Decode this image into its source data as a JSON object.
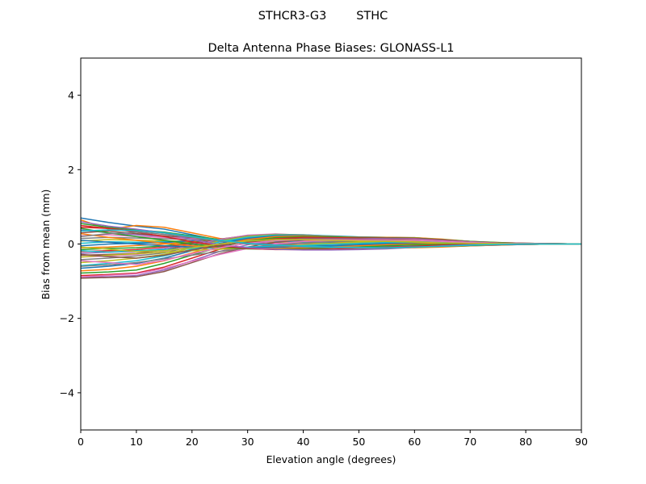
{
  "figure": {
    "suptitle": "STHCR3-G3        STHC"
  },
  "chart_data": {
    "type": "line",
    "title": "Delta Antenna Phase Biases: GLONASS-L1",
    "xlabel": "Elevation angle (degrees)",
    "ylabel": "Bias from mean (mm)",
    "xlim": [
      0,
      90
    ],
    "ylim": [
      -5,
      5
    ],
    "x_ticks": [
      0,
      10,
      20,
      30,
      40,
      50,
      60,
      70,
      80,
      90
    ],
    "y_ticks": [
      -4,
      -2,
      0,
      2,
      4
    ],
    "x_tick_labels": [
      "0",
      "10",
      "20",
      "30",
      "40",
      "50",
      "60",
      "70",
      "80",
      "90"
    ],
    "y_tick_labels": [
      "−4",
      "−2",
      "0",
      "2",
      "4"
    ],
    "grid": false,
    "legend": "none",
    "x": [
      0,
      5,
      10,
      15,
      20,
      25,
      30,
      35,
      40,
      45,
      50,
      55,
      60,
      65,
      70,
      75,
      80,
      85,
      90
    ],
    "palette": [
      "#1f77b4",
      "#ff7f0e",
      "#2ca02c",
      "#d62728",
      "#9467bd",
      "#8c564b",
      "#e377c2",
      "#7f7f7f",
      "#bcbd22",
      "#17becf"
    ],
    "series": [
      {
        "values": [
          0.7,
          0.58,
          0.48,
          0.4,
          0.25,
          0.1,
          0.02,
          -0.04,
          -0.07,
          -0.09,
          -0.1,
          -0.1,
          -0.09,
          -0.07,
          -0.05,
          -0.03,
          -0.01,
          0.0,
          0.0
        ]
      },
      {
        "values": [
          0.65,
          0.4,
          0.5,
          0.45,
          0.3,
          0.15,
          0.05,
          -0.02,
          -0.06,
          -0.08,
          -0.1,
          -0.11,
          -0.1,
          -0.08,
          -0.05,
          -0.03,
          -0.01,
          0.0,
          0.0
        ]
      },
      {
        "values": [
          0.55,
          0.45,
          0.38,
          0.32,
          0.22,
          0.12,
          0.04,
          -0.02,
          -0.05,
          -0.07,
          -0.08,
          -0.09,
          -0.08,
          -0.06,
          -0.04,
          -0.02,
          -0.01,
          0.0,
          0.0
        ]
      },
      {
        "values": [
          0.45,
          0.42,
          0.35,
          0.3,
          0.2,
          0.1,
          0.03,
          -0.02,
          -0.05,
          -0.06,
          -0.07,
          -0.08,
          -0.07,
          -0.05,
          -0.03,
          -0.02,
          -0.01,
          0.0,
          0.0
        ]
      },
      {
        "values": [
          0.38,
          0.3,
          0.25,
          0.2,
          0.15,
          0.08,
          0.03,
          -0.01,
          -0.03,
          -0.05,
          -0.06,
          -0.06,
          -0.05,
          -0.04,
          -0.03,
          -0.02,
          -0.01,
          0.0,
          0.0
        ]
      },
      {
        "values": [
          0.3,
          0.35,
          0.28,
          0.22,
          0.16,
          0.1,
          0.05,
          0.01,
          -0.02,
          -0.04,
          -0.05,
          -0.05,
          -0.04,
          -0.03,
          -0.02,
          -0.01,
          0.0,
          0.0,
          0.0
        ]
      },
      {
        "values": [
          0.22,
          0.25,
          0.2,
          0.18,
          0.14,
          0.1,
          0.06,
          0.03,
          0.0,
          -0.02,
          -0.03,
          -0.04,
          -0.04,
          -0.03,
          -0.02,
          -0.01,
          0.0,
          0.0,
          0.0
        ]
      },
      {
        "values": [
          0.15,
          0.18,
          0.16,
          0.14,
          0.12,
          0.1,
          0.08,
          0.05,
          0.02,
          0.0,
          -0.02,
          -0.03,
          -0.03,
          -0.03,
          -0.02,
          -0.01,
          0.0,
          0.0,
          0.0
        ]
      },
      {
        "values": [
          0.08,
          0.12,
          0.1,
          0.08,
          0.08,
          0.08,
          0.08,
          0.06,
          0.04,
          0.02,
          0.0,
          -0.02,
          -0.02,
          -0.02,
          -0.02,
          -0.01,
          0.0,
          0.0,
          0.0
        ]
      },
      {
        "values": [
          0.02,
          0.06,
          0.05,
          0.06,
          0.08,
          0.1,
          0.1,
          0.08,
          0.06,
          0.03,
          0.01,
          -0.01,
          -0.02,
          -0.02,
          -0.01,
          -0.01,
          0.0,
          0.0,
          0.0
        ]
      },
      {
        "values": [
          -0.05,
          0.0,
          0.02,
          0.04,
          0.08,
          0.12,
          0.13,
          0.11,
          0.08,
          0.05,
          0.02,
          0.0,
          -0.01,
          -0.02,
          -0.01,
          -0.01,
          0.0,
          0.0,
          0.0
        ]
      },
      {
        "values": [
          -0.1,
          -0.08,
          -0.04,
          0.0,
          0.06,
          0.12,
          0.15,
          0.14,
          0.11,
          0.07,
          0.04,
          0.01,
          -0.01,
          -0.01,
          -0.01,
          0.0,
          0.0,
          0.0,
          0.0
        ]
      },
      {
        "values": [
          -0.15,
          -0.12,
          -0.1,
          -0.05,
          0.04,
          0.12,
          0.17,
          0.17,
          0.14,
          0.1,
          0.06,
          0.03,
          0.01,
          0.0,
          0.0,
          0.0,
          0.0,
          0.0,
          0.0
        ]
      },
      {
        "values": [
          -0.2,
          -0.18,
          -0.15,
          -0.08,
          0.02,
          0.12,
          0.19,
          0.2,
          0.17,
          0.12,
          0.08,
          0.05,
          0.02,
          0.01,
          0.0,
          0.0,
          0.0,
          0.0,
          0.0
        ]
      },
      {
        "values": [
          -0.25,
          -0.22,
          -0.2,
          -0.12,
          0.0,
          0.13,
          0.21,
          0.22,
          0.19,
          0.15,
          0.11,
          0.08,
          0.05,
          0.02,
          0.01,
          0.0,
          0.0,
          0.0,
          0.0
        ]
      },
      {
        "values": [
          -0.3,
          -0.28,
          -0.25,
          -0.16,
          -0.02,
          0.13,
          0.23,
          0.25,
          0.22,
          0.17,
          0.13,
          0.1,
          0.07,
          0.04,
          0.02,
          0.01,
          0.0,
          0.0,
          0.0
        ]
      },
      {
        "values": [
          -0.35,
          -0.32,
          -0.28,
          -0.2,
          -0.04,
          0.12,
          0.24,
          0.27,
          0.24,
          0.19,
          0.15,
          0.13,
          0.1,
          0.06,
          0.03,
          0.01,
          0.0,
          0.0,
          0.0
        ]
      },
      {
        "values": [
          -0.42,
          -0.38,
          -0.32,
          -0.24,
          -0.06,
          0.1,
          0.22,
          0.26,
          0.25,
          0.21,
          0.17,
          0.15,
          0.12,
          0.07,
          0.04,
          0.02,
          0.01,
          0.0,
          0.0
        ]
      },
      {
        "values": [
          -0.5,
          -0.45,
          -0.38,
          -0.28,
          -0.1,
          0.08,
          0.2,
          0.25,
          0.24,
          0.21,
          0.18,
          0.17,
          0.15,
          0.1,
          0.05,
          0.02,
          0.01,
          0.0,
          0.0
        ]
      },
      {
        "values": [
          -0.58,
          -0.52,
          -0.45,
          -0.32,
          -0.14,
          0.06,
          0.18,
          0.24,
          0.24,
          0.22,
          0.19,
          0.18,
          0.16,
          0.11,
          0.06,
          0.03,
          0.01,
          0.0,
          0.0
        ]
      },
      {
        "values": [
          -0.65,
          -0.6,
          -0.52,
          -0.38,
          -0.18,
          0.02,
          0.15,
          0.22,
          0.23,
          0.21,
          0.19,
          0.18,
          0.17,
          0.12,
          0.07,
          0.03,
          0.02,
          0.01,
          0.0
        ]
      },
      {
        "values": [
          -0.72,
          -0.68,
          -0.6,
          -0.45,
          -0.24,
          -0.02,
          0.12,
          0.2,
          0.22,
          0.2,
          0.18,
          0.18,
          0.17,
          0.13,
          0.07,
          0.04,
          0.02,
          0.01,
          0.0
        ]
      },
      {
        "values": [
          -0.78,
          -0.75,
          -0.7,
          -0.52,
          -0.3,
          -0.08,
          0.08,
          0.17,
          0.2,
          0.19,
          0.17,
          0.17,
          0.16,
          0.12,
          0.07,
          0.04,
          0.02,
          0.01,
          0.0
        ]
      },
      {
        "values": [
          -0.85,
          -0.82,
          -0.78,
          -0.62,
          -0.38,
          -0.14,
          0.04,
          0.14,
          0.18,
          0.17,
          0.16,
          0.16,
          0.15,
          0.11,
          0.06,
          0.03,
          0.02,
          0.01,
          0.0
        ]
      },
      {
        "values": [
          -0.9,
          -0.88,
          -0.85,
          -0.7,
          -0.45,
          -0.2,
          -0.02,
          0.1,
          0.15,
          0.15,
          0.14,
          0.15,
          0.14,
          0.1,
          0.06,
          0.03,
          0.02,
          0.01,
          0.0
        ]
      },
      {
        "values": [
          -0.92,
          -0.9,
          -0.88,
          -0.74,
          -0.5,
          -0.26,
          -0.08,
          0.05,
          0.11,
          0.12,
          0.12,
          0.13,
          0.12,
          0.09,
          0.05,
          0.03,
          0.01,
          0.01,
          0.0
        ]
      },
      {
        "values": [
          -0.88,
          -0.84,
          -0.8,
          -0.66,
          -0.46,
          -0.28,
          -0.12,
          0.0,
          0.07,
          0.09,
          0.1,
          0.11,
          0.11,
          0.08,
          0.05,
          0.02,
          0.01,
          0.0,
          0.0
        ]
      },
      {
        "values": [
          -0.6,
          -0.56,
          -0.5,
          -0.4,
          -0.3,
          -0.2,
          -0.1,
          -0.03,
          0.03,
          0.06,
          0.08,
          0.09,
          0.09,
          0.07,
          0.04,
          0.02,
          0.01,
          0.0,
          0.0
        ]
      },
      {
        "values": [
          -0.35,
          -0.3,
          -0.26,
          -0.22,
          -0.18,
          -0.14,
          -0.1,
          -0.06,
          -0.02,
          0.02,
          0.05,
          0.07,
          0.07,
          0.06,
          0.03,
          0.02,
          0.01,
          0.0,
          0.0
        ]
      },
      {
        "values": [
          -0.18,
          -0.22,
          -0.18,
          -0.15,
          -0.12,
          -0.1,
          -0.08,
          -0.06,
          -0.04,
          -0.01,
          0.02,
          0.04,
          0.05,
          0.04,
          0.03,
          0.01,
          0.0,
          0.0,
          0.0
        ]
      },
      {
        "values": [
          0.1,
          0.05,
          0.0,
          -0.05,
          -0.08,
          -0.1,
          -0.1,
          -0.09,
          -0.07,
          -0.05,
          -0.02,
          0.01,
          0.02,
          0.02,
          0.02,
          0.01,
          0.0,
          0.0,
          0.0
        ]
      },
      {
        "values": [
          0.28,
          0.18,
          0.1,
          0.02,
          -0.05,
          -0.1,
          -0.12,
          -0.12,
          -0.1,
          -0.08,
          -0.05,
          -0.02,
          0.0,
          0.01,
          0.01,
          0.01,
          0.0,
          0.0,
          0.0
        ]
      },
      {
        "values": [
          0.42,
          0.3,
          0.2,
          0.1,
          0.0,
          -0.08,
          -0.13,
          -0.14,
          -0.13,
          -0.11,
          -0.08,
          -0.05,
          -0.02,
          -0.01,
          0.0,
          0.0,
          0.0,
          0.0,
          0.0
        ]
      },
      {
        "values": [
          0.5,
          0.42,
          0.32,
          0.2,
          0.06,
          -0.05,
          -0.12,
          -0.15,
          -0.15,
          -0.14,
          -0.12,
          -0.09,
          -0.06,
          -0.03,
          -0.01,
          0.0,
          0.0,
          0.0,
          0.0
        ]
      },
      {
        "values": [
          0.6,
          0.48,
          0.4,
          0.3,
          0.12,
          -0.02,
          -0.1,
          -0.14,
          -0.16,
          -0.16,
          -0.15,
          -0.13,
          -0.09,
          -0.05,
          -0.02,
          -0.01,
          0.0,
          0.0,
          0.0
        ]
      },
      {
        "values": [
          -0.28,
          -0.34,
          -0.38,
          -0.3,
          -0.16,
          -0.04,
          0.06,
          0.12,
          0.14,
          0.14,
          0.13,
          0.12,
          0.1,
          0.07,
          0.04,
          0.02,
          0.01,
          0.0,
          0.0
        ]
      },
      {
        "values": [
          -0.45,
          -0.5,
          -0.55,
          -0.44,
          -0.26,
          -0.1,
          0.02,
          0.09,
          0.12,
          0.12,
          0.11,
          0.11,
          0.1,
          0.07,
          0.04,
          0.02,
          0.01,
          0.0,
          0.0
        ]
      },
      {
        "values": [
          0.2,
          0.28,
          0.32,
          0.26,
          0.18,
          0.08,
          0.0,
          -0.05,
          -0.08,
          -0.1,
          -0.11,
          -0.11,
          -0.09,
          -0.06,
          -0.03,
          -0.02,
          -0.01,
          0.0,
          0.0
        ]
      },
      {
        "values": [
          -0.08,
          -0.14,
          -0.2,
          -0.18,
          -0.1,
          0.0,
          0.08,
          0.12,
          0.12,
          0.1,
          0.08,
          0.07,
          0.05,
          0.03,
          0.02,
          0.01,
          0.0,
          0.0,
          0.0
        ]
      },
      {
        "values": [
          0.35,
          0.38,
          0.36,
          0.3,
          0.2,
          0.1,
          0.02,
          -0.03,
          -0.06,
          -0.08,
          -0.09,
          -0.1,
          -0.08,
          -0.06,
          -0.03,
          -0.01,
          0.0,
          0.0,
          0.0
        ]
      }
    ]
  }
}
